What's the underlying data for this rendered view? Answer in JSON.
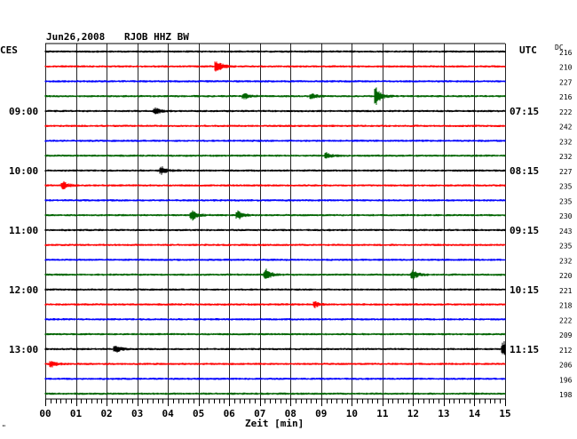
{
  "header": {
    "date": "Jun26,2008",
    "station": "RJOB HHZ BW",
    "left_tz": "CES",
    "right_tz": "UTC",
    "dc_label": "DC",
    "corner_mark": "\""
  },
  "chart_data": {
    "type": "line",
    "title": "Jun26,2008 RJOB HHZ BW",
    "xlabel": "Zeit [min]",
    "xlim": [
      0,
      15
    ],
    "x_ticks": [
      "00",
      "01",
      "02",
      "03",
      "04",
      "05",
      "06",
      "07",
      "08",
      "09",
      "10",
      "11",
      "12",
      "13",
      "14",
      "15"
    ],
    "grid": true,
    "trace_colors": [
      "#000000",
      "#ff0000",
      "#0000ff",
      "#006400"
    ],
    "left_hour_labels": [
      "09:00",
      "10:00",
      "11:00",
      "12:00",
      "13:00"
    ],
    "right_hour_labels": [
      "07:15",
      "08:15",
      "09:15",
      "10:15",
      "11:15"
    ],
    "dc_values": [
      "216",
      "210",
      "227",
      "216",
      "222",
      "242",
      "232",
      "232",
      "227",
      "235",
      "235",
      "230",
      "243",
      "235",
      "232",
      "220",
      "221",
      "218",
      "222",
      "209",
      "212",
      "206",
      "196",
      "198"
    ],
    "events": [
      {
        "trace": 1,
        "minute": 5.6,
        "amplitude": 7
      },
      {
        "trace": 3,
        "minute": 10.8,
        "amplitude": 11
      },
      {
        "trace": 3,
        "minute": 6.5,
        "amplitude": 3
      },
      {
        "trace": 3,
        "minute": 8.7,
        "amplitude": 3
      },
      {
        "trace": 4,
        "minute": 3.6,
        "amplitude": 4
      },
      {
        "trace": 7,
        "minute": 9.2,
        "amplitude": 3
      },
      {
        "trace": 8,
        "minute": 3.8,
        "amplitude": 4
      },
      {
        "trace": 9,
        "minute": 0.6,
        "amplitude": 4
      },
      {
        "trace": 11,
        "minute": 4.8,
        "amplitude": 5
      },
      {
        "trace": 11,
        "minute": 6.3,
        "amplitude": 5
      },
      {
        "trace": 15,
        "minute": 7.2,
        "amplitude": 7
      },
      {
        "trace": 15,
        "minute": 12.0,
        "amplitude": 5
      },
      {
        "trace": 17,
        "minute": 8.8,
        "amplitude": 3
      },
      {
        "trace": 20,
        "minute": 2.3,
        "amplitude": 4
      },
      {
        "trace": 20,
        "minute": 14.95,
        "amplitude": 9
      },
      {
        "trace": 21,
        "minute": 0.2,
        "amplitude": 4
      }
    ]
  }
}
